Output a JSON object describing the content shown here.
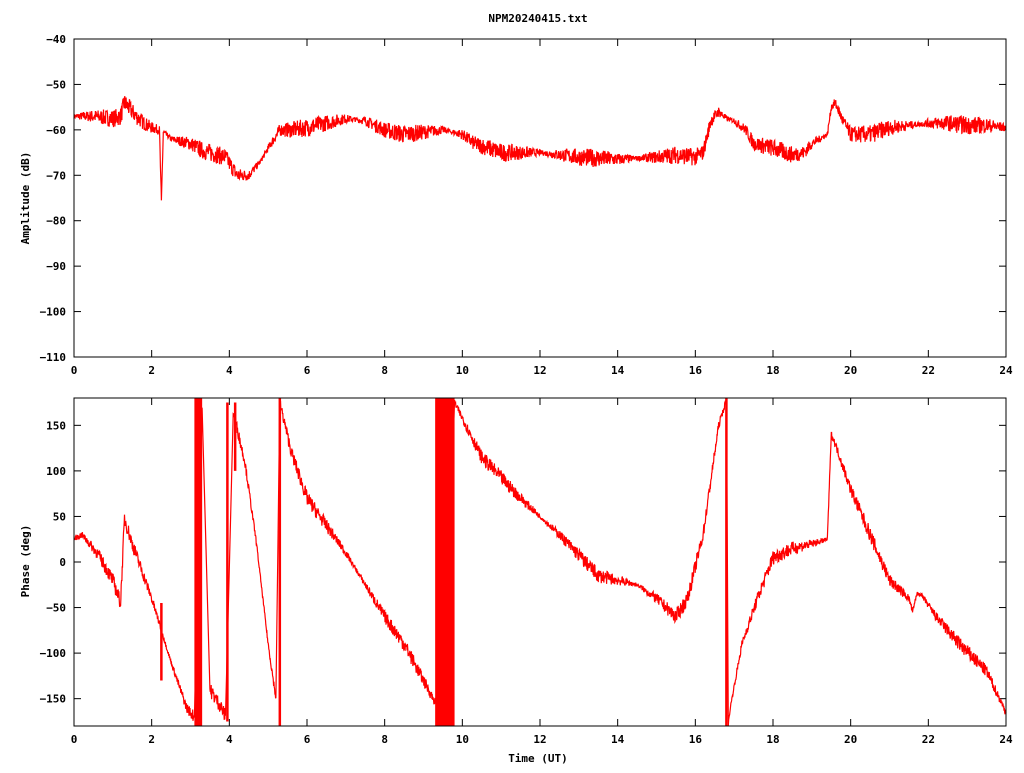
{
  "chart_data": {
    "title": "NPM20240415.txt",
    "xlabel": "Time (UT)",
    "line_color": "#ff0000",
    "panels": [
      {
        "type": "line",
        "ylabel": "Amplitude (dB)",
        "ylim": [
          -110,
          -40
        ],
        "yticks": [
          -40,
          -50,
          -60,
          -70,
          -80,
          -90,
          -100,
          -110
        ],
        "xlim": [
          0,
          24
        ],
        "xticks": [
          0,
          2,
          4,
          6,
          8,
          10,
          12,
          14,
          16,
          18,
          20,
          22,
          24
        ],
        "noise": [
          0.5,
          2
        ],
        "x": [
          0,
          0.5,
          1,
          1.2,
          1.3,
          1.4,
          1.6,
          1.8,
          2,
          2.2,
          2.25,
          2.3,
          2.5,
          3,
          3.3,
          3.5,
          3.9,
          4.2,
          4.5,
          4.8,
          5,
          5.3,
          5.6,
          6,
          6.5,
          7,
          7.5,
          8,
          8.5,
          9,
          9.5,
          10,
          10.3,
          10.5,
          11,
          12,
          13,
          14,
          15,
          15.5,
          16,
          16.2,
          16.4,
          16.6,
          16.8,
          17,
          17.3,
          17.5,
          18,
          18.5,
          18.8,
          19,
          19.4,
          19.5,
          19.6,
          19.8,
          20,
          20.5,
          21,
          21.5,
          22,
          22.5,
          23,
          23.5,
          24
        ],
        "y": [
          -57,
          -57,
          -57.5,
          -57,
          -54,
          -55,
          -57,
          -58.5,
          -59.5,
          -60,
          -76,
          -60.5,
          -62,
          -63,
          -64.5,
          -65,
          -66,
          -70,
          -70,
          -67,
          -64,
          -60,
          -60,
          -59.5,
          -58.5,
          -57.5,
          -58,
          -60,
          -61,
          -60.5,
          -60,
          -61,
          -63,
          -63.5,
          -65,
          -65,
          -66,
          -66.5,
          -66,
          -65.5,
          -66,
          -65,
          -58,
          -56,
          -57.5,
          -58,
          -60,
          -63,
          -64,
          -65.5,
          -65,
          -63,
          -61,
          -55,
          -54,
          -58,
          -61,
          -61,
          -59.5,
          -59,
          -58.5,
          -58.5,
          -59,
          -59,
          -59.5
        ]
      },
      {
        "type": "line",
        "ylabel": "Phase (deg)",
        "ylim": [
          -180,
          180
        ],
        "yticks": [
          150,
          100,
          50,
          0,
          -50,
          -100,
          -150
        ],
        "xlim": [
          0,
          24
        ],
        "xticks": [
          0,
          2,
          4,
          6,
          8,
          10,
          12,
          14,
          16,
          18,
          20,
          22,
          24
        ],
        "noise": [
          2,
          8
        ],
        "x": [
          0,
          0.2,
          0.6,
          1.0,
          1.2,
          1.3,
          1.5,
          2.0,
          2.5,
          2.9,
          3.1,
          3.3,
          3.5,
          3.8,
          3.9,
          4.1,
          4.4,
          4.7,
          5.0,
          5.2,
          5.3,
          5.6,
          6.0,
          7.0,
          8.0,
          8.5,
          9.0,
          9.5,
          9.8,
          10.5,
          11.5,
          12.5,
          13.5,
          14.5,
          15.0,
          15.5,
          15.8,
          16.2,
          16.6,
          16.8,
          16.85,
          16.9,
          17.2,
          17.6,
          18.0,
          18.5,
          19.0,
          19.4,
          19.5,
          19.6,
          20.0,
          20.5,
          21.0,
          21.5,
          21.6,
          21.7,
          21.8,
          22.2,
          22.8,
          23.5,
          24.0
        ],
        "y": [
          25,
          30,
          10,
          -20,
          -45,
          48,
          20,
          -40,
          -110,
          -160,
          -170,
          170,
          -140,
          -160,
          -170,
          165,
          110,
          20,
          -90,
          -150,
          175,
          120,
          70,
          10,
          -60,
          -90,
          -130,
          -170,
          175,
          115,
          70,
          30,
          -15,
          -25,
          -40,
          -60,
          -40,
          30,
          150,
          178,
          -178,
          -160,
          -90,
          -40,
          5,
          15,
          20,
          25,
          140,
          130,
          80,
          30,
          -20,
          -40,
          -55,
          -35,
          -35,
          -60,
          -90,
          -120,
          -165
        ],
        "fill_bands": [
          [
            3.1,
            3.3
          ],
          [
            9.3,
            9.8
          ]
        ],
        "spikes": [
          [
            2.25,
            -130,
            -45
          ],
          [
            3.95,
            -175,
            175
          ],
          [
            4.15,
            100,
            175
          ],
          [
            5.3,
            -180,
            180
          ],
          [
            16.8,
            -180,
            180
          ]
        ]
      }
    ]
  }
}
